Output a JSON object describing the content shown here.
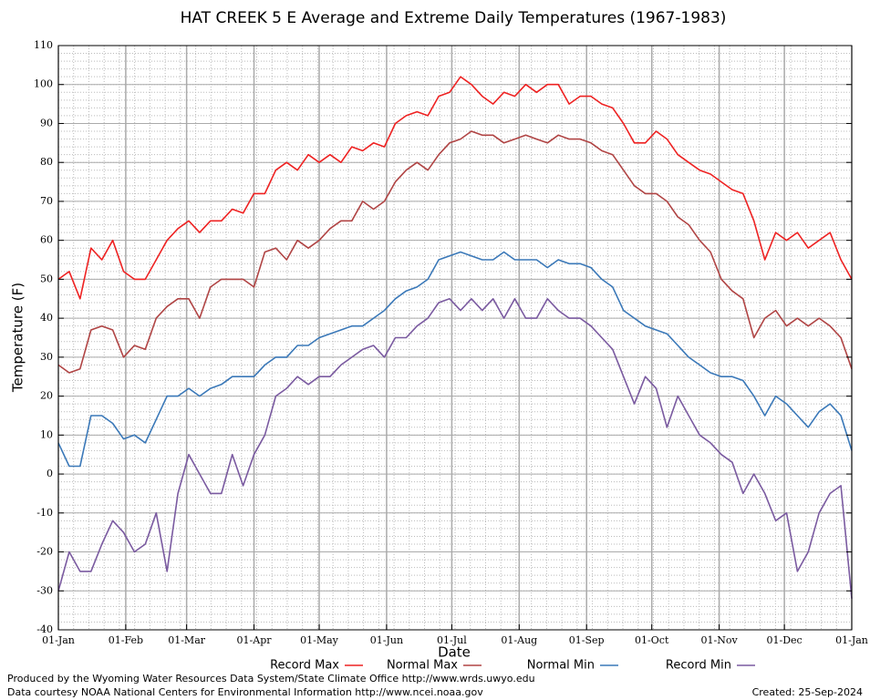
{
  "chart_data": {
    "type": "line",
    "title": "HAT CREEK 5 E Average and Extreme Daily Temperatures (1967-1983)",
    "x_label": "Date",
    "y_label": "Temperature (F)",
    "x": [
      0,
      5,
      10,
      15,
      20,
      25,
      30,
      35,
      40,
      45,
      50,
      55,
      60,
      65,
      70,
      75,
      80,
      85,
      90,
      95,
      100,
      105,
      110,
      115,
      120,
      125,
      130,
      135,
      140,
      145,
      150,
      155,
      160,
      165,
      170,
      175,
      180,
      185,
      190,
      195,
      200,
      205,
      210,
      215,
      220,
      225,
      230,
      235,
      240,
      245,
      250,
      255,
      260,
      265,
      270,
      275,
      280,
      285,
      290,
      295,
      300,
      305,
      310,
      315,
      320,
      325,
      330,
      335,
      340,
      345,
      350,
      355,
      360,
      365
    ],
    "xlim": [
      0,
      365
    ],
    "xticks": [
      {
        "value": 0,
        "label": "01-Jan"
      },
      {
        "value": 31,
        "label": "01-Feb"
      },
      {
        "value": 59,
        "label": "01-Mar"
      },
      {
        "value": 90,
        "label": "01-Apr"
      },
      {
        "value": 120,
        "label": "01-May"
      },
      {
        "value": 151,
        "label": "01-Jun"
      },
      {
        "value": 181,
        "label": "01-Jul"
      },
      {
        "value": 212,
        "label": "01-Aug"
      },
      {
        "value": 243,
        "label": "01-Sep"
      },
      {
        "value": 273,
        "label": "01-Oct"
      },
      {
        "value": 304,
        "label": "01-Nov"
      },
      {
        "value": 334,
        "label": "01-Dec"
      },
      {
        "value": 365,
        "label": "01-Jan"
      }
    ],
    "ylim": [
      -40,
      110
    ],
    "yticks": [
      -40,
      -30,
      -20,
      -10,
      0,
      10,
      20,
      30,
      40,
      50,
      60,
      70,
      80,
      90,
      100,
      110
    ],
    "grid": true,
    "series": [
      {
        "name": "Record Max",
        "color": "#ee2222",
        "values": [
          50,
          52,
          45,
          58,
          55,
          60,
          52,
          50,
          50,
          55,
          60,
          63,
          65,
          62,
          65,
          65,
          68,
          67,
          72,
          72,
          78,
          80,
          78,
          82,
          80,
          82,
          80,
          84,
          83,
          85,
          84,
          90,
          92,
          93,
          92,
          97,
          98,
          102,
          100,
          97,
          95,
          98,
          97,
          100,
          98,
          100,
          100,
          95,
          97,
          97,
          95,
          94,
          90,
          85,
          85,
          88,
          86,
          82,
          80,
          78,
          77,
          75,
          73,
          72,
          65,
          55,
          62,
          60,
          62,
          58,
          60,
          62,
          55,
          50
        ]
      },
      {
        "name": "Normal Max",
        "color": "#b04444",
        "values": [
          28,
          26,
          27,
          37,
          38,
          37,
          30,
          33,
          32,
          40,
          43,
          45,
          45,
          40,
          48,
          50,
          50,
          50,
          48,
          57,
          58,
          55,
          60,
          58,
          60,
          63,
          65,
          65,
          70,
          68,
          70,
          75,
          78,
          80,
          78,
          82,
          85,
          86,
          88,
          87,
          87,
          85,
          86,
          87,
          86,
          85,
          87,
          86,
          86,
          85,
          83,
          82,
          78,
          74,
          72,
          72,
          70,
          66,
          64,
          60,
          57,
          50,
          47,
          45,
          35,
          40,
          42,
          38,
          40,
          38,
          40,
          38,
          35,
          27
        ]
      },
      {
        "name": "Normal Min",
        "color": "#3a78b8",
        "values": [
          8,
          2,
          2,
          15,
          15,
          13,
          9,
          10,
          8,
          14,
          20,
          20,
          22,
          20,
          22,
          23,
          25,
          25,
          25,
          28,
          30,
          30,
          33,
          33,
          35,
          36,
          37,
          38,
          38,
          40,
          42,
          45,
          47,
          48,
          50,
          55,
          56,
          57,
          56,
          55,
          55,
          57,
          55,
          55,
          55,
          53,
          55,
          54,
          54,
          53,
          50,
          48,
          42,
          40,
          38,
          37,
          36,
          33,
          30,
          28,
          26,
          25,
          25,
          24,
          20,
          15,
          20,
          18,
          15,
          12,
          16,
          18,
          15,
          6
        ]
      },
      {
        "name": "Record Min",
        "color": "#7a5aa0",
        "values": [
          -30,
          -20,
          -25,
          -25,
          -18,
          -12,
          -15,
          -20,
          -18,
          -10,
          -25,
          -5,
          5,
          0,
          -5,
          -5,
          5,
          -3,
          5,
          10,
          20,
          22,
          25,
          23,
          25,
          25,
          28,
          30,
          32,
          33,
          30,
          35,
          35,
          38,
          40,
          44,
          45,
          42,
          45,
          42,
          45,
          40,
          45,
          40,
          40,
          45,
          42,
          40,
          40,
          38,
          35,
          32,
          25,
          18,
          25,
          22,
          12,
          20,
          15,
          10,
          8,
          5,
          3,
          -5,
          0,
          -5,
          -12,
          -10,
          -25,
          -20,
          -10,
          -5,
          -3,
          -32
        ]
      }
    ],
    "annotations": [
      "Produced by the Wyoming Water Resources Data System/State Climate Office http://www.wrds.uwyo.edu",
      "Data courtesy NOAA National Centers for Environmental Information http://www.ncei.noaa.gov",
      "Created:  25-Sep-2024"
    ]
  }
}
